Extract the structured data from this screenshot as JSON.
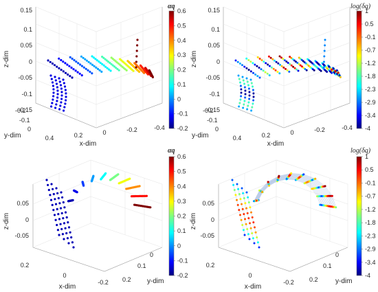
{
  "chart_data": [
    {
      "type": "scatter",
      "panel": "top-left",
      "title": "",
      "xlabel": "x-dim",
      "ylabel": "y-dim",
      "zlabel": "z-dim",
      "x_ticks": [
        "0.4",
        "0.2",
        "0",
        "-0.2",
        "-0.4"
      ],
      "y_ticks": [
        "-0.2",
        "-0.1",
        "0"
      ],
      "z_ticks": [
        "0.15",
        "0.1",
        "0.05",
        "0",
        "-0.05",
        "-0.1",
        "-0.15"
      ],
      "colorbar": {
        "label": "αq",
        "ticks": [
          "0.6",
          "0.5",
          "0.4",
          "0.3",
          "0.2",
          "0.1",
          "0",
          "-0.1",
          "-0.2"
        ],
        "min": -0.2,
        "max": 0.6
      }
    },
    {
      "type": "scatter",
      "panel": "top-right",
      "title": "",
      "xlabel": "x-dim",
      "ylabel": "y-dim",
      "zlabel": "z-dim",
      "x_ticks": [
        "0.4",
        "0.2",
        "0",
        "-0.2",
        "-0.4"
      ],
      "y_ticks": [
        "-0.2",
        "-0.1",
        "0"
      ],
      "z_ticks": [
        "0.15",
        "0.1",
        "0.05",
        "0",
        "-0.05",
        "-0.1",
        "-0.15"
      ],
      "colorbar": {
        "label": "log(δq)",
        "ticks": [
          "1",
          "0.5",
          "-0.1",
          "-0.7",
          "-1.2",
          "-1.8",
          "-2.3",
          "-2.9",
          "-3.4",
          "-4"
        ],
        "min": -4,
        "max": 1
      }
    },
    {
      "type": "scatter",
      "panel": "bottom-left",
      "title": "",
      "xlabel": "x-dim",
      "ylabel": "y-dim",
      "zlabel": "z-dim",
      "x_ticks": [
        "0.2",
        "0",
        "-0.2"
      ],
      "y_ticks": [
        "0",
        "0.1",
        "0.2"
      ],
      "z_ticks": [
        "0.05",
        "0",
        "-0.05"
      ],
      "colorbar": {
        "label": "αq",
        "ticks": [
          "0.6",
          "0.5",
          "0.4",
          "0.3",
          "0.2",
          "0.1",
          "0",
          "-0.1",
          "-0.2"
        ],
        "min": -0.2,
        "max": 0.6
      }
    },
    {
      "type": "scatter",
      "panel": "bottom-right",
      "title": "",
      "xlabel": "x-dim",
      "ylabel": "y-dim",
      "zlabel": "z-dim",
      "x_ticks": [
        "0.2",
        "0",
        "-0.2"
      ],
      "y_ticks": [
        "0",
        "0.1",
        "0.2"
      ],
      "z_ticks": [
        "0.05",
        "0",
        "-0.05"
      ],
      "colorbar": {
        "label": "log(δq)",
        "ticks": [
          "1",
          "0.5",
          "-0.1",
          "-0.7",
          "-1.2",
          "-1.8",
          "-2.3",
          "-2.9",
          "-3.4",
          "-4"
        ],
        "min": -4,
        "max": 1
      }
    }
  ]
}
